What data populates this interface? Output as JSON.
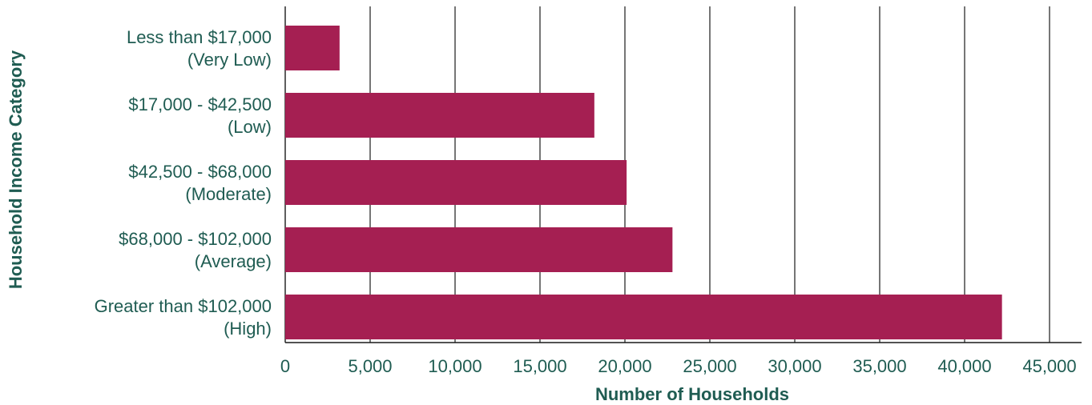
{
  "chart_data": {
    "type": "bar",
    "orientation": "horizontal",
    "categories": [
      [
        "Less than $17,000",
        "(Very Low)"
      ],
      [
        "$17,000 - $42,500",
        "(Low)"
      ],
      [
        "$42,500 - $68,000",
        "(Moderate)"
      ],
      [
        "$68,000 - $102,000",
        "(Average)"
      ],
      [
        "Greater than $102,000",
        "(High)"
      ]
    ],
    "values": [
      3200,
      18200,
      20100,
      22800,
      42200
    ],
    "xlabel": "Number of Households",
    "ylabel": "Household Income Category",
    "xlim": [
      0,
      45000
    ],
    "xticks": [
      0,
      5000,
      10000,
      15000,
      20000,
      25000,
      30000,
      35000,
      40000,
      45000
    ],
    "xtick_labels": [
      "0",
      "5,000",
      "10,000",
      "15,000",
      "20,000",
      "25,000",
      "30,000",
      "35,000",
      "40,000",
      "45,000"
    ],
    "vertical_grid": true,
    "legend": "none",
    "colors": {
      "bar": "#a51f52",
      "text": "#1f5c52",
      "grid": "#1a1a1a"
    }
  }
}
